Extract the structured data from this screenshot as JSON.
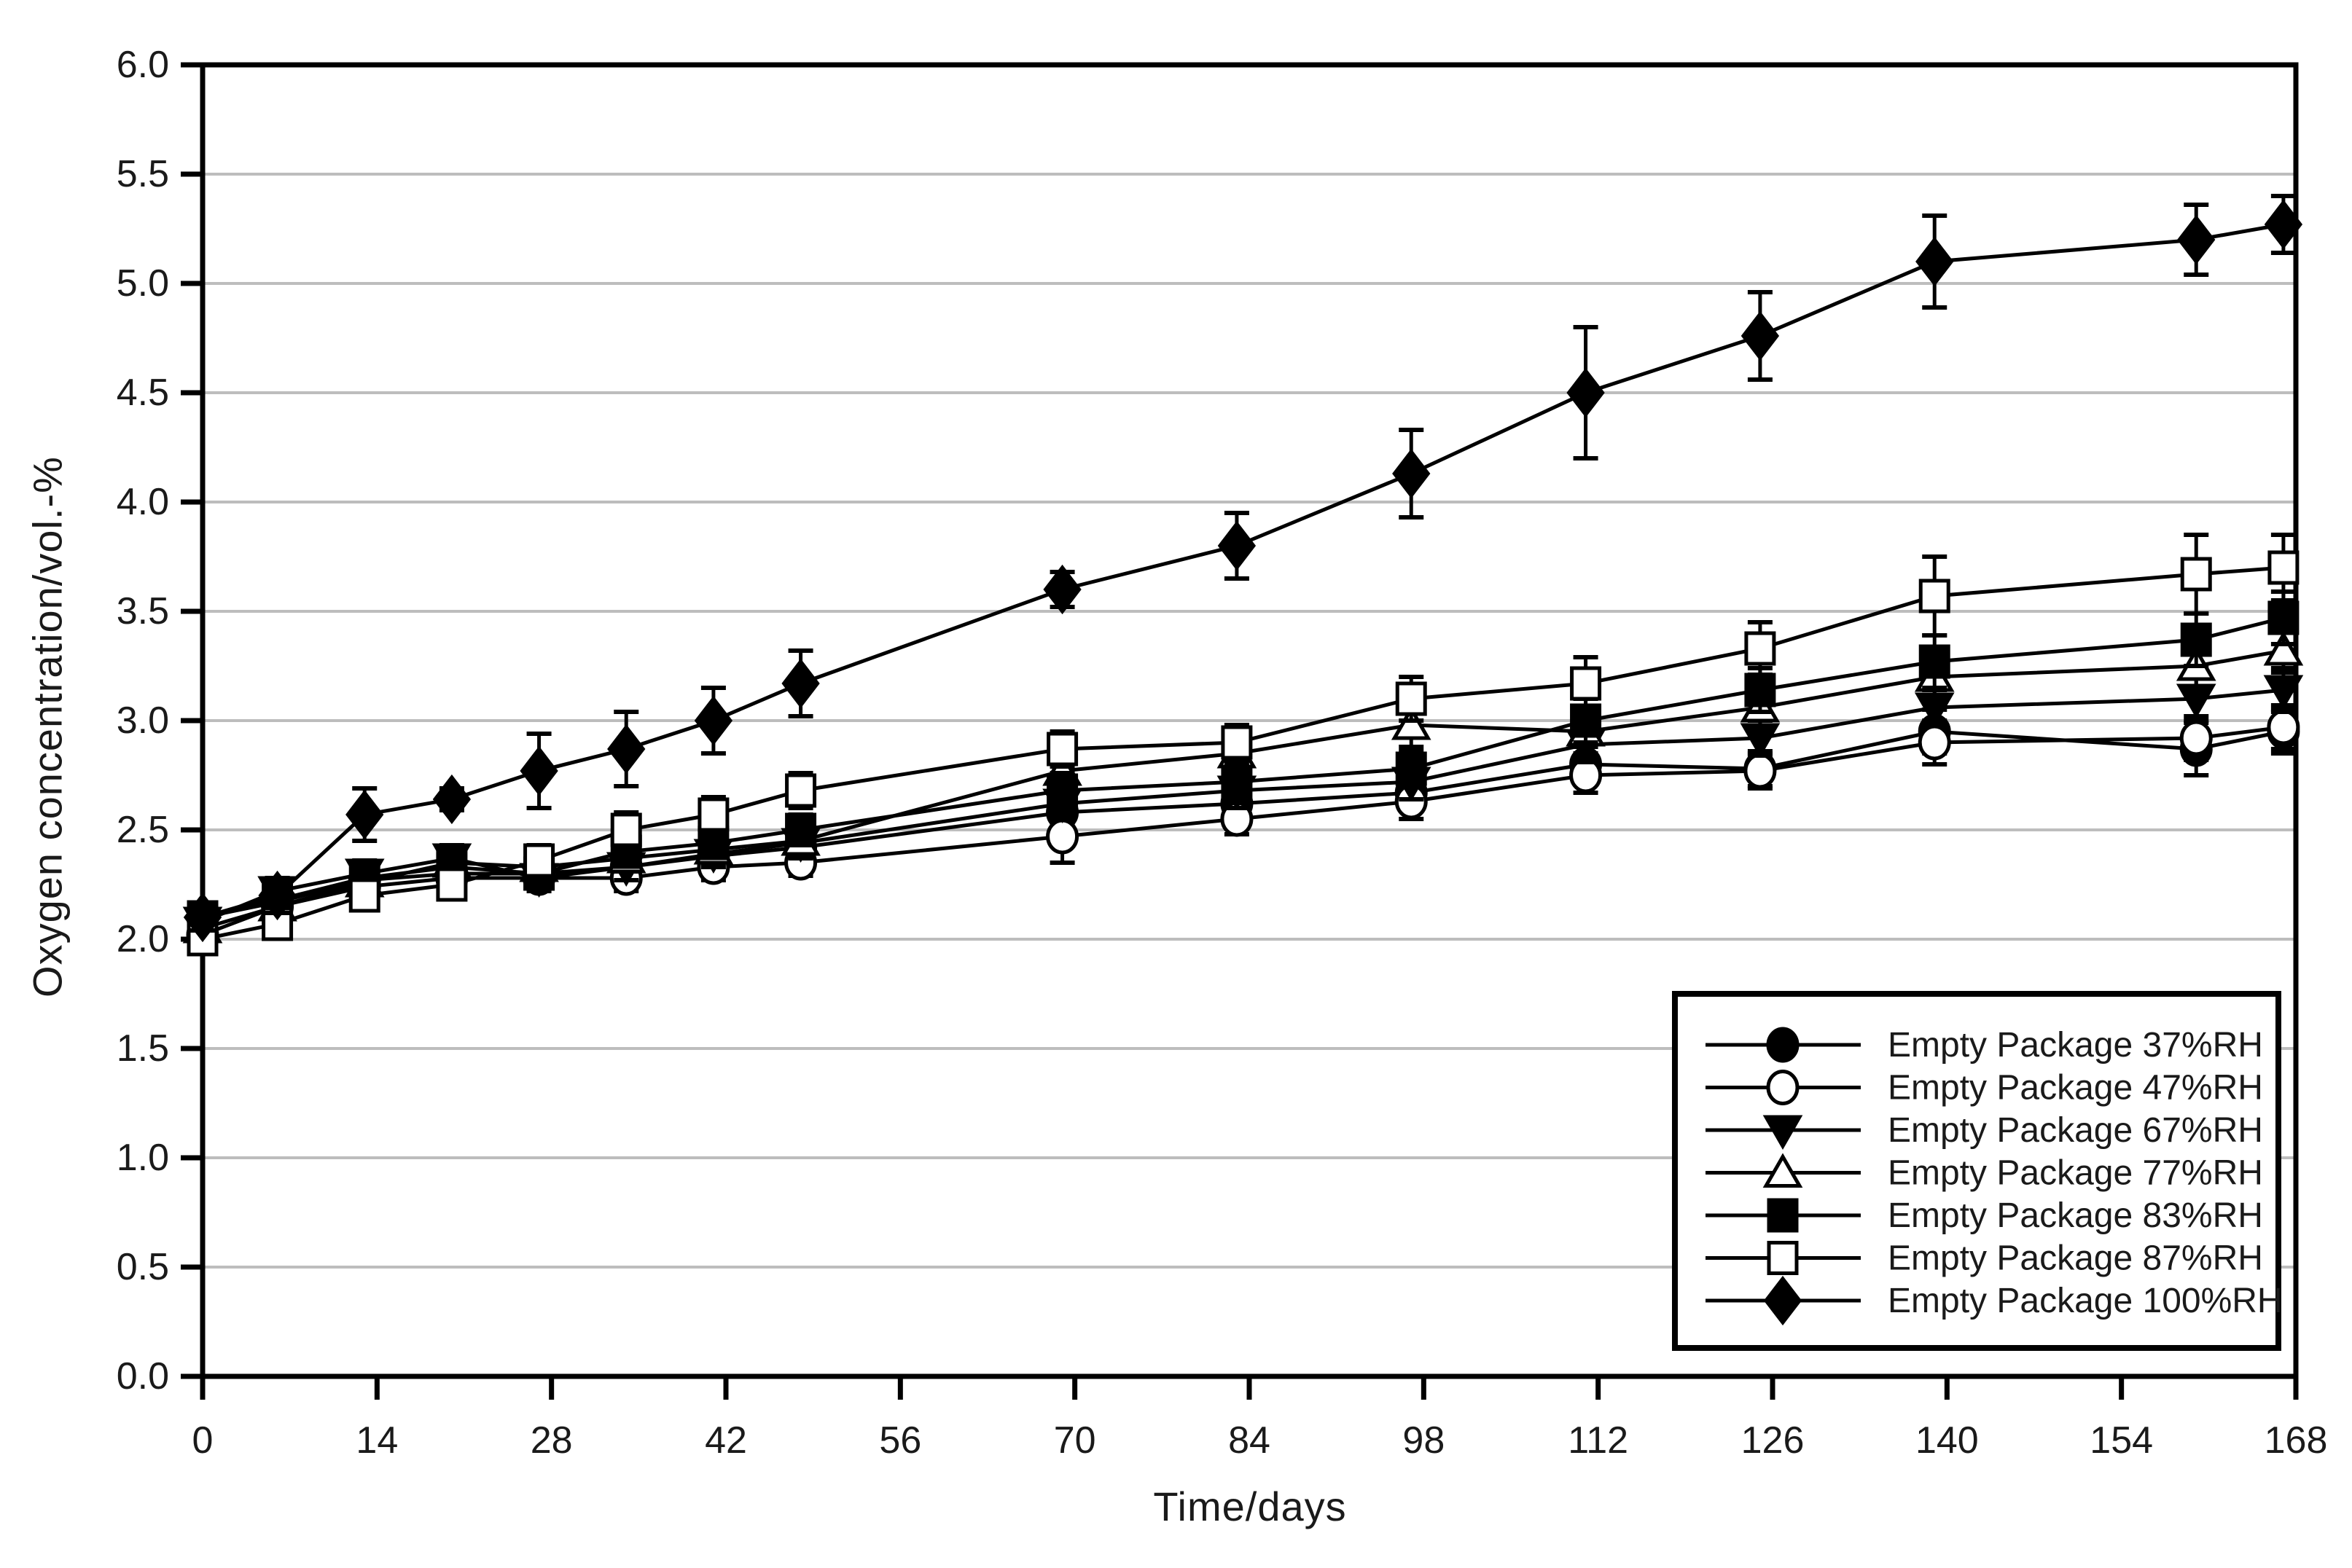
{
  "chart_data": {
    "type": "line",
    "title": "",
    "xlabel": "Time/days",
    "ylabel": "Oxygen concentration/vol.-%",
    "xlim": [
      0,
      168
    ],
    "ylim": [
      0.0,
      6.0
    ],
    "x_ticks": [
      0,
      14,
      28,
      42,
      56,
      70,
      84,
      98,
      112,
      126,
      140,
      154,
      168
    ],
    "y_ticks": [
      "0.0",
      "0.5",
      "1.0",
      "1.5",
      "2.0",
      "2.5",
      "3.0",
      "3.5",
      "4.0",
      "4.5",
      "5.0",
      "5.5",
      "6.0"
    ],
    "grid": "horizontal",
    "legend_position": "lower right",
    "x": [
      0,
      6,
      13,
      20,
      27,
      34,
      41,
      48,
      69,
      83,
      97,
      111,
      125,
      139,
      160,
      167
    ],
    "series": [
      {
        "name": "Empty Package 37%RH",
        "marker": "circle-filled",
        "values": [
          2.1,
          2.17,
          2.27,
          2.3,
          2.3,
          2.33,
          2.38,
          2.42,
          2.58,
          2.62,
          2.67,
          2.8,
          2.78,
          2.95,
          2.87,
          2.95
        ],
        "errors": [
          0.05,
          0.05,
          0.06,
          0.05,
          0.06,
          0.06,
          0.06,
          0.07,
          0.06,
          0.07,
          0.08,
          0.08,
          0.08,
          0.1,
          0.12,
          0.1
        ]
      },
      {
        "name": "Empty Package 47%RH",
        "marker": "circle-open",
        "values": [
          2.02,
          2.15,
          2.24,
          2.28,
          2.28,
          2.28,
          2.33,
          2.35,
          2.47,
          2.55,
          2.63,
          2.75,
          2.77,
          2.9,
          2.92,
          2.97
        ],
        "errors": [
          0.05,
          0.05,
          0.05,
          0.05,
          0.05,
          0.06,
          0.06,
          0.06,
          0.12,
          0.07,
          0.08,
          0.08,
          0.08,
          0.1,
          0.1,
          0.1
        ]
      },
      {
        "name": "Empty Package 67%RH",
        "marker": "triangle-down-filled",
        "values": [
          2.08,
          2.22,
          2.3,
          2.37,
          2.28,
          2.33,
          2.39,
          2.44,
          2.62,
          2.68,
          2.72,
          2.89,
          2.92,
          3.06,
          3.1,
          3.14
        ],
        "errors": [
          0.05,
          0.05,
          0.06,
          0.06,
          0.06,
          0.06,
          0.06,
          0.07,
          0.07,
          0.08,
          0.08,
          0.08,
          0.08,
          0.08,
          0.1,
          0.1
        ]
      },
      {
        "name": "Empty Package 77%RH",
        "marker": "triangle-up-open",
        "values": [
          2.05,
          2.15,
          2.26,
          2.35,
          2.33,
          2.37,
          2.41,
          2.45,
          2.77,
          2.85,
          2.98,
          2.95,
          3.06,
          3.2,
          3.25,
          3.32
        ],
        "errors": [
          0.05,
          0.05,
          0.06,
          0.06,
          0.06,
          0.06,
          0.06,
          0.07,
          0.08,
          0.08,
          0.1,
          0.1,
          0.1,
          0.1,
          0.1,
          0.1
        ]
      },
      {
        "name": "Empty Package 83%RH",
        "marker": "square-filled",
        "values": [
          2.1,
          2.18,
          2.28,
          2.33,
          2.3,
          2.4,
          2.44,
          2.5,
          2.68,
          2.72,
          2.78,
          3.0,
          3.14,
          3.27,
          3.37,
          3.47
        ],
        "errors": [
          0.05,
          0.05,
          0.06,
          0.06,
          0.06,
          0.06,
          0.06,
          0.07,
          0.08,
          0.08,
          0.08,
          0.1,
          0.1,
          0.12,
          0.12,
          0.12
        ]
      },
      {
        "name": "Empty Package 87%RH",
        "marker": "square-open",
        "values": [
          2.0,
          2.07,
          2.2,
          2.25,
          2.36,
          2.5,
          2.57,
          2.68,
          2.87,
          2.9,
          3.1,
          3.17,
          3.33,
          3.57,
          3.67,
          3.7
        ],
        "errors": [
          0.06,
          0.06,
          0.06,
          0.06,
          0.07,
          0.08,
          0.08,
          0.08,
          0.08,
          0.08,
          0.1,
          0.12,
          0.12,
          0.18,
          0.18,
          0.15
        ]
      },
      {
        "name": "Empty Package 100%RH",
        "marker": "diamond-filled",
        "values": [
          2.1,
          2.2,
          2.57,
          2.64,
          2.77,
          2.87,
          3.0,
          3.17,
          3.6,
          3.8,
          4.13,
          4.5,
          4.76,
          5.1,
          5.2,
          5.27
        ],
        "errors": [
          0.06,
          0.08,
          0.12,
          0.05,
          0.17,
          0.17,
          0.15,
          0.15,
          0.08,
          0.15,
          0.2,
          0.3,
          0.2,
          0.21,
          0.16,
          0.13
        ]
      }
    ],
    "colors": {
      "line": "#000000",
      "grid": "#bdbdbd",
      "background": "#ffffff",
      "marker_open_fill": "#ffffff"
    }
  }
}
